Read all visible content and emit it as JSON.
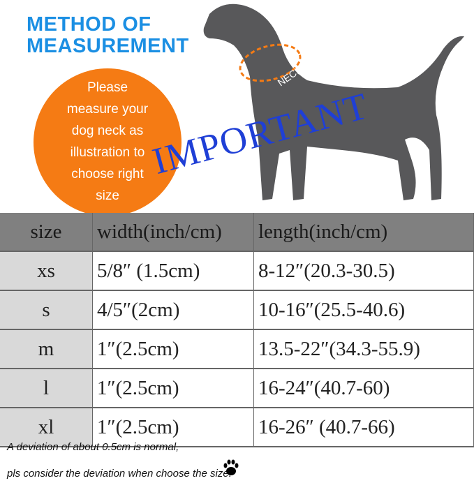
{
  "title_lines": [
    "METHOD OF",
    "MEASUREMENT"
  ],
  "instruction_lines": [
    "Please",
    "measure your",
    "dog neck as",
    "illustration to",
    "choose right",
    "size"
  ],
  "neck_label": "NECK",
  "watermark": "IMPORTANT",
  "table": {
    "headers": [
      "size",
      "width(inch/cm)",
      "length(inch/cm)"
    ],
    "rows": [
      [
        "xs",
        "5/8″ (1.5cm)",
        "8-12″(20.3-30.5)"
      ],
      [
        "s",
        "4/5″(2cm)",
        "10-16″(25.5-40.6)"
      ],
      [
        "m",
        "1″(2.5cm)",
        "13.5-22″(34.3-55.9)"
      ],
      [
        "l",
        "1″(2.5cm)",
        "16-24″(40.7-60)"
      ],
      [
        "xl",
        "1″(2.5cm)",
        "16-26″ (40.7-66)"
      ]
    ]
  },
  "notes": [
    "A deviation of about 0.5cm is normal,",
    "pls consider the deviation when choose the size."
  ],
  "colors": {
    "title": "#1b8fe3",
    "circle": "#f57b14",
    "dog": "#58585a",
    "header_bg": "#808080",
    "size_col_bg": "#d9d9d9",
    "watermark": "#1f3fd6"
  }
}
